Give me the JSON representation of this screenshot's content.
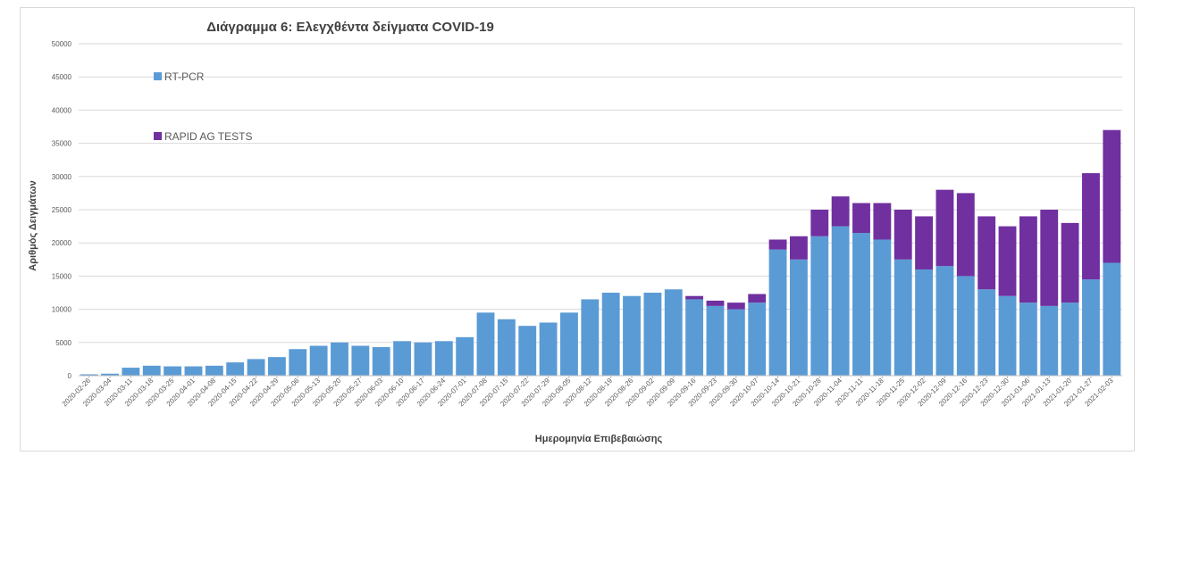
{
  "chart_data": {
    "type": "bar",
    "stacked": true,
    "title": "Διάγραμμα 6: Ελεγχθέντα δείγματα COVID-19",
    "xlabel": "Ημερομηνία Επιβεβαιώσης",
    "ylabel": "Αριθμός Δειγμάτων",
    "ylim": [
      0,
      50000
    ],
    "y_ticks": [
      "0",
      "5000",
      "10000",
      "15000",
      "20000",
      "25000",
      "30000",
      "35000",
      "40000",
      "45000",
      "50000"
    ],
    "x_tick_labels": [
      "2020-02-26",
      "2020-03-04",
      "2020-03-11",
      "2020-03-18",
      "2020-03-25",
      "2020-04-01",
      "2020-04-08",
      "2020-04-15",
      "2020-04-22",
      "2020-04-29",
      "2020-05-06",
      "2020-05-13",
      "2020-05-20",
      "2020-05-27",
      "2020-06-03",
      "2020-06-10",
      "2020-06-17",
      "2020-06-24",
      "2020-07-01",
      "2020-07-08",
      "2020-07-15",
      "2020-07-22",
      "2020-07-29",
      "2020-08-05",
      "2020-08-12",
      "2020-08-19",
      "2020-08-26",
      "2020-09-02",
      "2020-09-09",
      "2020-09-16",
      "2020-09-23",
      "2020-09-30",
      "2020-10-07",
      "2020-10-14",
      "2020-10-21",
      "2020-10-28",
      "2020-11-04",
      "2020-11-11",
      "2020-11-18",
      "2020-11-25",
      "2020-12-02",
      "2020-12-09",
      "2020-12-16",
      "2020-12-23",
      "2020-12-30",
      "2021-01-06",
      "2021-01-13",
      "2021-01-20",
      "2021-01-27",
      "2021-02-03"
    ],
    "grid": true,
    "legend_position": "top-left",
    "categories": [
      "2020-02-26",
      "2020-03-04",
      "2020-03-11",
      "2020-03-18",
      "2020-03-25",
      "2020-04-01",
      "2020-04-08",
      "2020-04-15",
      "2020-04-22",
      "2020-04-29",
      "2020-05-06",
      "2020-05-13",
      "2020-05-20",
      "2020-05-27",
      "2020-06-03",
      "2020-06-10",
      "2020-06-17",
      "2020-06-24",
      "2020-07-01",
      "2020-07-08",
      "2020-07-15",
      "2020-07-22",
      "2020-07-29",
      "2020-08-05",
      "2020-08-12",
      "2020-08-19",
      "2020-08-26",
      "2020-09-02",
      "2020-09-09",
      "2020-09-16",
      "2020-09-23",
      "2020-09-30",
      "2020-10-07",
      "2020-10-14",
      "2020-10-21",
      "2020-10-28",
      "2020-11-04",
      "2020-11-11",
      "2020-11-18",
      "2020-11-25",
      "2020-12-02",
      "2020-12-09",
      "2020-12-16",
      "2020-12-23",
      "2020-12-30",
      "2021-01-06",
      "2021-01-13",
      "2021-01-20",
      "2021-01-27",
      "2021-02-03"
    ],
    "series": [
      {
        "name": "RT-PCR",
        "color": "#5b9bd5",
        "values": [
          200,
          300,
          1200,
          1500,
          1400,
          1400,
          1500,
          2000,
          2500,
          2800,
          4000,
          4500,
          5000,
          4500,
          4300,
          5200,
          5000,
          5200,
          5800,
          9500,
          8500,
          7500,
          8000,
          9500,
          11500,
          12500,
          12000,
          12500,
          13000,
          11500,
          10500,
          10000,
          11000,
          19000,
          17500,
          21000,
          22500,
          21500,
          20500,
          17500,
          16000,
          16500,
          15000,
          13000,
          12000,
          11000,
          10500,
          11000,
          14500,
          17000
        ]
      },
      {
        "name": "RAPID AG TESTS",
        "color": "#7030a0",
        "values": [
          0,
          0,
          0,
          0,
          0,
          0,
          0,
          0,
          0,
          0,
          0,
          0,
          0,
          0,
          0,
          0,
          0,
          0,
          0,
          0,
          0,
          0,
          0,
          0,
          0,
          0,
          0,
          0,
          0,
          500,
          800,
          1000,
          1300,
          1500,
          3500,
          4000,
          4500,
          4500,
          5500,
          7500,
          8000,
          11500,
          12500,
          11000,
          10500,
          13000,
          14500,
          12000,
          16000,
          20000
        ]
      }
    ]
  }
}
